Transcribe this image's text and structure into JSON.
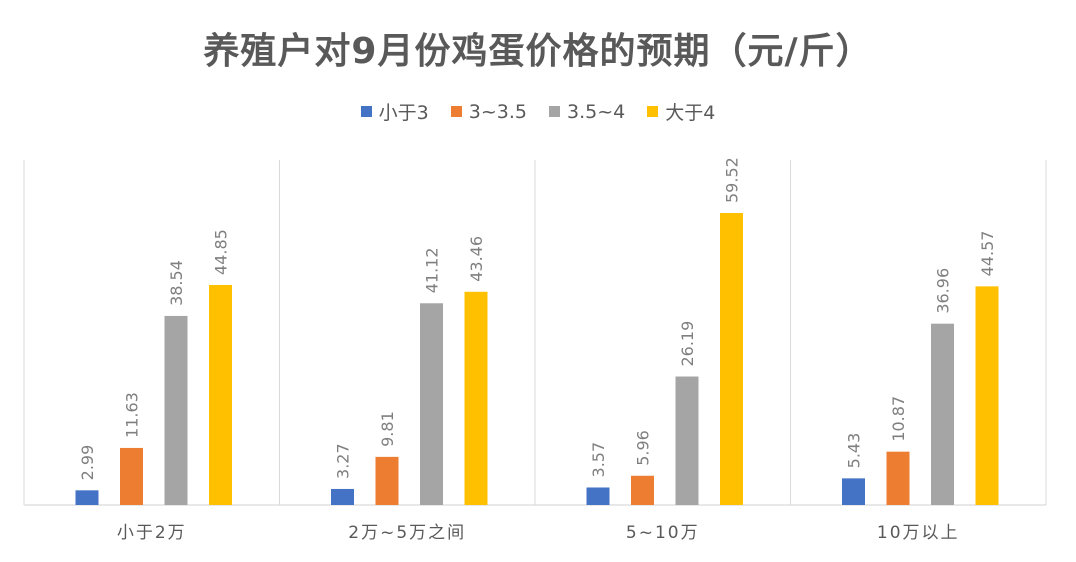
{
  "chart_data": {
    "type": "bar",
    "title": "养殖户对9月份鸡蛋价格的预期（元/斤）",
    "categories": [
      "小于2万",
      "2万~5万之间",
      "5~10万",
      "10万以上"
    ],
    "series": [
      {
        "name": "小于3",
        "color": "#4472C4",
        "values": [
          2.99,
          3.27,
          3.57,
          5.43
        ]
      },
      {
        "name": "3~3.5",
        "color": "#ED7D31",
        "values": [
          11.63,
          9.81,
          5.96,
          10.87
        ]
      },
      {
        "name": "3.5~4",
        "color": "#A5A5A5",
        "values": [
          38.54,
          41.12,
          26.19,
          36.96
        ]
      },
      {
        "name": "大于4",
        "color": "#FFC000",
        "values": [
          44.85,
          43.46,
          59.52,
          44.57
        ]
      }
    ],
    "value_labels": [
      [
        "2.99",
        "3.27",
        "3.57",
        "5.43"
      ],
      [
        "11.63",
        "9.81",
        "5.96",
        "10.87"
      ],
      [
        "38.54",
        "41.12",
        "26.19",
        "36.96"
      ],
      [
        "44.85",
        "43.46",
        "59.52",
        "44.57"
      ]
    ],
    "ylim": [
      0,
      65
    ],
    "legend_position": "top",
    "grid": false,
    "category_separators": true
  }
}
